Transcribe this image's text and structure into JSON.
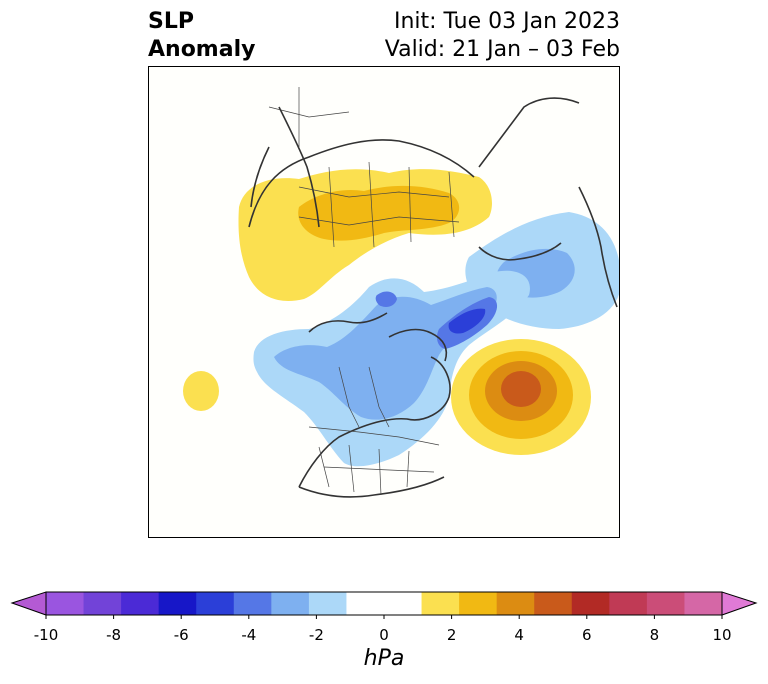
{
  "title": {
    "variable_line1": "SLP",
    "variable_line2": "Anomaly",
    "init": "Init: Tue 03 Jan 2023",
    "valid": "Valid: 21 Jan – 03 Feb"
  },
  "map": {
    "projection": "north-polar-stereographic",
    "features": [
      {
        "name": "positive-anomaly-siberia",
        "sign": "positive",
        "peak_hpa": 2
      },
      {
        "name": "negative-anomaly-arctic-north-america",
        "sign": "negative",
        "peak_hpa": -4
      },
      {
        "name": "positive-anomaly-north-atlantic",
        "sign": "positive",
        "peak_hpa": 5
      },
      {
        "name": "positive-anomaly-north-pacific-small",
        "sign": "positive",
        "peak_hpa": 1
      },
      {
        "name": "negative-anomaly-east-asia",
        "sign": "negative",
        "peak_hpa": -2
      }
    ]
  },
  "colorbar": {
    "unit": "hPa",
    "ticks": [
      "-10",
      "-8",
      "-6",
      "-4",
      "-2",
      "0",
      "2",
      "4",
      "6",
      "8",
      "10"
    ],
    "colors": [
      "#b45ad4",
      "#9a55e0",
      "#7243d8",
      "#4b2ad6",
      "#1717c8",
      "#2b3fd8",
      "#5577e6",
      "#7eb0f0",
      "#acd8f8",
      "#ffffff",
      "#ffffff",
      "#fbe050",
      "#f1b913",
      "#dc8c12",
      "#c95a1b",
      "#b22a25",
      "#c03a55",
      "#cb4d78",
      "#d567a6",
      "#e07ad6"
    ],
    "extend": "both"
  }
}
